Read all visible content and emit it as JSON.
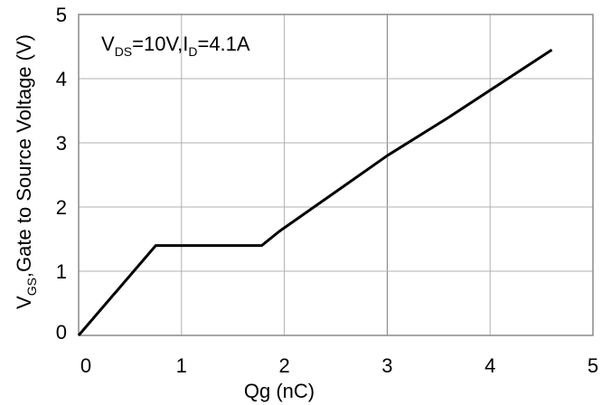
{
  "chart_data": {
    "type": "line",
    "title": "",
    "xlabel": "Qg  (nC)",
    "ylabel": {
      "v": "V",
      "sub": "GS",
      "rest": ",Gate to Source Voltage (V)"
    },
    "annotation": {
      "v1": "V",
      "sub1": "DS",
      "mid": "=10V,I",
      "sub2": "D",
      "end": "=4.1A"
    },
    "xlim": [
      0,
      5
    ],
    "ylim": [
      0,
      5
    ],
    "x_ticks": [
      "0",
      "1",
      "2",
      "3",
      "4",
      "5"
    ],
    "y_ticks": [
      "0",
      "1",
      "2",
      "3",
      "4",
      "5"
    ],
    "grid": true,
    "series": [
      {
        "x": [
          0,
          0.75,
          1.78,
          1.95,
          2.6,
          3.0,
          3.6,
          4.6
        ],
        "y": [
          0,
          1.4,
          1.4,
          1.62,
          2.35,
          2.8,
          3.4,
          4.45
        ]
      }
    ],
    "colors": {
      "line": "#000000",
      "grid": "#b0b0b0",
      "frame": "#8a8a8a"
    }
  }
}
